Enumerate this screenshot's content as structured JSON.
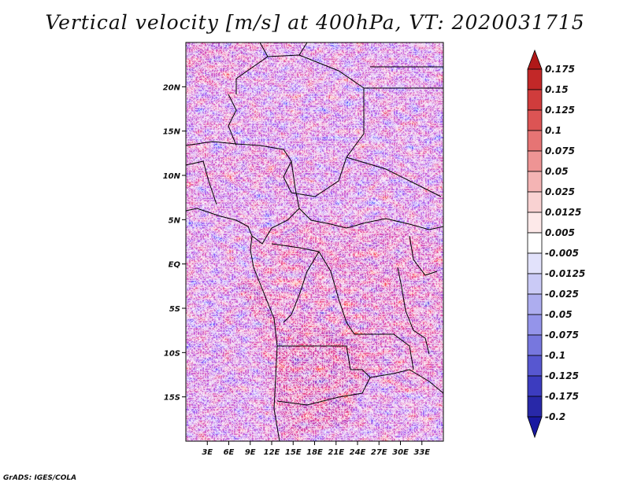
{
  "title": "Vertical velocity [m/s] at 400hPa, VT: 2020031715",
  "credit": "GrADS: IGES/COLA",
  "map": {
    "lon_range": [
      0,
      36
    ],
    "lat_range": [
      -20,
      25
    ],
    "lon_ticks": [
      {
        "value": 3,
        "label": "3E"
      },
      {
        "value": 6,
        "label": "6E"
      },
      {
        "value": 9,
        "label": "9E"
      },
      {
        "value": 12,
        "label": "12E"
      },
      {
        "value": 15,
        "label": "15E"
      },
      {
        "value": 18,
        "label": "18E"
      },
      {
        "value": 21,
        "label": "21E"
      },
      {
        "value": 24,
        "label": "24E"
      },
      {
        "value": 27,
        "label": "27E"
      },
      {
        "value": 30,
        "label": "30E"
      },
      {
        "value": 33,
        "label": "33E"
      }
    ],
    "lat_ticks": [
      {
        "value": 20,
        "label": "20N"
      },
      {
        "value": 15,
        "label": "15N"
      },
      {
        "value": 10,
        "label": "10N"
      },
      {
        "value": 5,
        "label": "5N"
      },
      {
        "value": 0,
        "label": "EQ"
      },
      {
        "value": -5,
        "label": "5S"
      },
      {
        "value": -10,
        "label": "10S"
      },
      {
        "value": -15,
        "label": "15S"
      }
    ]
  },
  "colorbar": {
    "labels": [
      "0.175",
      "0.15",
      "0.125",
      "0.1",
      "0.075",
      "0.05",
      "0.025",
      "0.0125",
      "0.005",
      "-0.005",
      "-0.0125",
      "-0.025",
      "-0.05",
      "-0.075",
      "-0.1",
      "-0.125",
      "-0.175",
      "-0.2"
    ],
    "colors": [
      "#b01818",
      "#c22828",
      "#d03c3c",
      "#dc5454",
      "#e67474",
      "#ee9494",
      "#f4b4b4",
      "#f9d2d2",
      "#fde9e9",
      "#ffffff",
      "#e2e2fb",
      "#cacaf6",
      "#adadef",
      "#9494ea",
      "#7777de",
      "#5757d0",
      "#3c3cbf",
      "#2828a8",
      "#1818a0"
    ]
  }
}
